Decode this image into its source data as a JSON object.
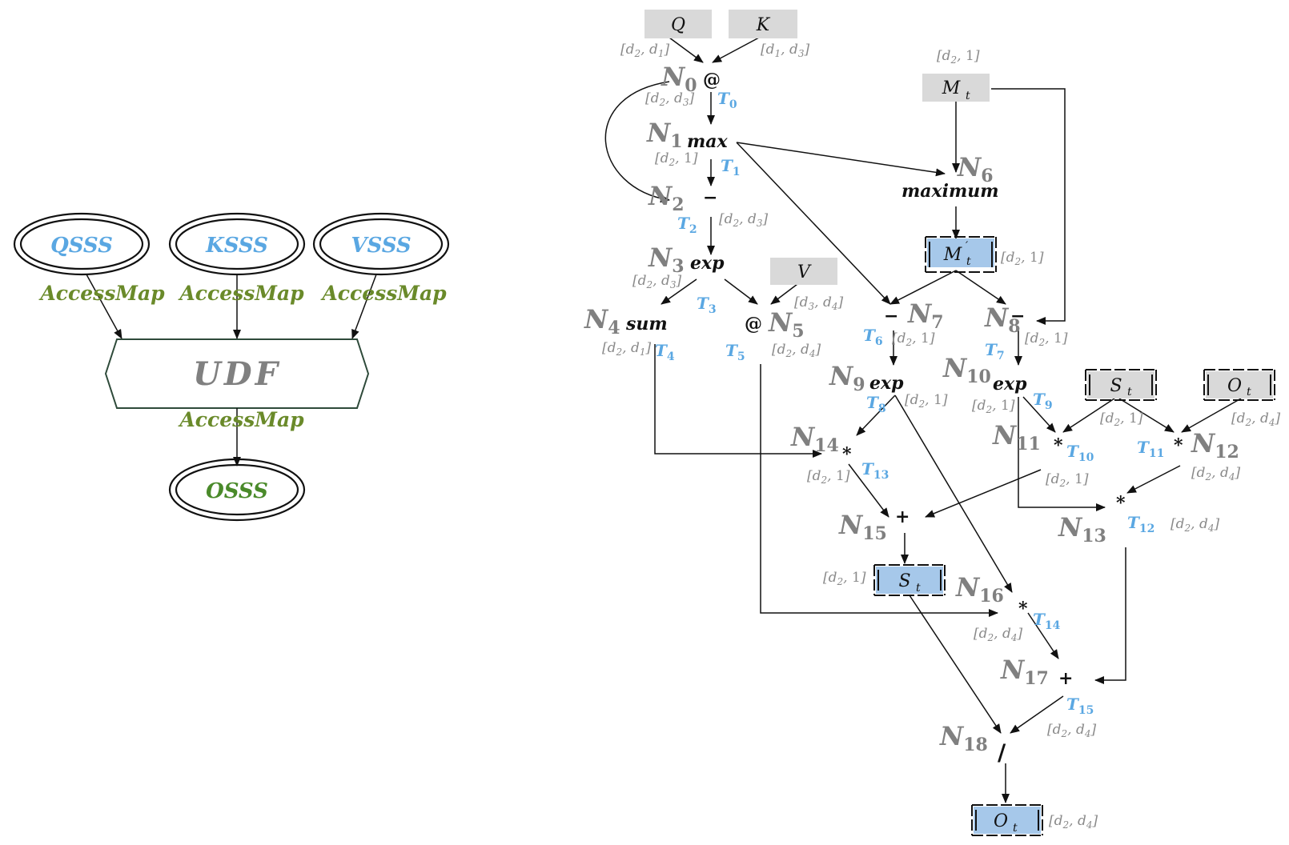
{
  "left": {
    "inputs": [
      {
        "id": "q",
        "label": "QSSS"
      },
      {
        "id": "k",
        "label": "KSSS"
      },
      {
        "id": "v",
        "label": "VSSS"
      }
    ],
    "edge_label": "AccessMap",
    "udf_label": "UDF",
    "output": {
      "label": "OSSS"
    },
    "colors": {
      "input_text": "#5aa7e2",
      "output_text": "#4a8a2a",
      "access_map": "#6a8a2a",
      "udf_border": "#2e4a3a",
      "udf_text": "#808080"
    }
  },
  "right": {
    "nodes": [
      {
        "id": "N0",
        "letter": "N",
        "sub": "0",
        "op": "@"
      },
      {
        "id": "N1",
        "letter": "N",
        "sub": "1",
        "op": "max"
      },
      {
        "id": "N2",
        "letter": "N",
        "sub": "2",
        "op": "−"
      },
      {
        "id": "N3",
        "letter": "N",
        "sub": "3",
        "op": "exp"
      },
      {
        "id": "N4",
        "letter": "N",
        "sub": "4",
        "op": "sum"
      },
      {
        "id": "N5",
        "letter": "N",
        "sub": "5",
        "op": "@"
      },
      {
        "id": "N6",
        "letter": "N",
        "sub": "6",
        "op": "maximum"
      },
      {
        "id": "N7",
        "letter": "N",
        "sub": "7",
        "op": "−"
      },
      {
        "id": "N8",
        "letter": "N",
        "sub": "8",
        "op": "−"
      },
      {
        "id": "N9",
        "letter": "N",
        "sub": "9",
        "op": "exp"
      },
      {
        "id": "N10",
        "letter": "N",
        "sub": "10",
        "op": "exp"
      },
      {
        "id": "N11",
        "letter": "N",
        "sub": "11",
        "op": "*"
      },
      {
        "id": "N12",
        "letter": "N",
        "sub": "12",
        "op": "*"
      },
      {
        "id": "N13",
        "letter": "N",
        "sub": "13",
        "op": "*"
      },
      {
        "id": "N14",
        "letter": "N",
        "sub": "14",
        "op": "*"
      },
      {
        "id": "N15",
        "letter": "N",
        "sub": "15",
        "op": "+"
      },
      {
        "id": "N16",
        "letter": "N",
        "sub": "16",
        "op": "*"
      },
      {
        "id": "N17",
        "letter": "N",
        "sub": "17",
        "op": "+"
      },
      {
        "id": "N18",
        "letter": "N",
        "sub": "18",
        "op": "/"
      }
    ],
    "tensors": [
      {
        "id": "Q",
        "name": "Q",
        "sub": "",
        "prime": false,
        "kind": "input"
      },
      {
        "id": "K",
        "name": "K",
        "sub": "",
        "prime": false,
        "kind": "input"
      },
      {
        "id": "V",
        "name": "V",
        "sub": "",
        "prime": false,
        "kind": "input"
      },
      {
        "id": "Mt",
        "name": "M",
        "sub": "t",
        "prime": false,
        "kind": "input"
      },
      {
        "id": "Mtp",
        "name": "M",
        "sub": "t",
        "prime": true,
        "kind": "state"
      },
      {
        "id": "St_in",
        "name": "S",
        "sub": "t",
        "prime": false,
        "kind": "state_input"
      },
      {
        "id": "Ot_in",
        "name": "O",
        "sub": "t",
        "prime": false,
        "kind": "state_input"
      },
      {
        "id": "St_out",
        "name": "S",
        "sub": "t",
        "prime": false,
        "kind": "state"
      },
      {
        "id": "Ot_out",
        "name": "O",
        "sub": "t",
        "prime": false,
        "kind": "state"
      }
    ],
    "t_labels": [
      "0",
      "1",
      "2",
      "3",
      "4",
      "5",
      "6",
      "7",
      "8",
      "9",
      "10",
      "11",
      "12",
      "13",
      "14",
      "15"
    ],
    "t_letter": "T",
    "dims": [
      {
        "id": "q",
        "a": "d",
        "as": "2",
        "b": "d",
        "bs": "1"
      },
      {
        "id": "k",
        "a": "d",
        "as": "1",
        "b": "d",
        "bs": "3"
      },
      {
        "id": "mt",
        "a": "d",
        "as": "2",
        "b": "1",
        "bs": ""
      },
      {
        "id": "n0",
        "a": "d",
        "as": "2",
        "b": "d",
        "bs": "3"
      },
      {
        "id": "n1",
        "a": "d",
        "as": "2",
        "b": "1",
        "bs": ""
      },
      {
        "id": "n2",
        "a": "d",
        "as": "2",
        "b": "d",
        "bs": "3"
      },
      {
        "id": "mtp",
        "a": "d",
        "as": "2",
        "b": "1",
        "bs": ""
      },
      {
        "id": "n3",
        "a": "d",
        "as": "2",
        "b": "d",
        "bs": "3"
      },
      {
        "id": "v",
        "a": "d",
        "as": "3",
        "b": "d",
        "bs": "4"
      },
      {
        "id": "n4",
        "a": "d",
        "as": "2",
        "b": "d",
        "bs": "1"
      },
      {
        "id": "n5",
        "a": "d",
        "as": "2",
        "b": "d",
        "bs": "4"
      },
      {
        "id": "n7",
        "a": "d",
        "as": "2",
        "b": "1",
        "bs": ""
      },
      {
        "id": "n8",
        "a": "d",
        "as": "2",
        "b": "1",
        "bs": ""
      },
      {
        "id": "n9",
        "a": "d",
        "as": "2",
        "b": "1",
        "bs": ""
      },
      {
        "id": "n10",
        "a": "d",
        "as": "2",
        "b": "1",
        "bs": ""
      },
      {
        "id": "st",
        "a": "d",
        "as": "2",
        "b": "1",
        "bs": ""
      },
      {
        "id": "ot",
        "a": "d",
        "as": "2",
        "b": "d",
        "bs": "4"
      },
      {
        "id": "n14",
        "a": "d",
        "as": "2",
        "b": "1",
        "bs": ""
      },
      {
        "id": "n11",
        "a": "d",
        "as": "2",
        "b": "1",
        "bs": ""
      },
      {
        "id": "n12",
        "a": "d",
        "as": "2",
        "b": "d",
        "bs": "4"
      },
      {
        "id": "n13",
        "a": "d",
        "as": "2",
        "b": "d",
        "bs": "4"
      },
      {
        "id": "n15",
        "a": "d",
        "as": "2",
        "b": "1",
        "bs": ""
      },
      {
        "id": "n16",
        "a": "d",
        "as": "2",
        "b": "d",
        "bs": "4"
      },
      {
        "id": "n17",
        "a": "d",
        "as": "2",
        "b": "d",
        "bs": "4"
      },
      {
        "id": "n18",
        "a": "d",
        "as": "2",
        "b": "d",
        "bs": "4"
      }
    ],
    "colors": {
      "input_box": "#d9d9d9",
      "state_box": "#a6c8ea",
      "node_label": "#808080",
      "t_label": "#5aa7e2",
      "dim_text": "#8a8a8a"
    }
  }
}
